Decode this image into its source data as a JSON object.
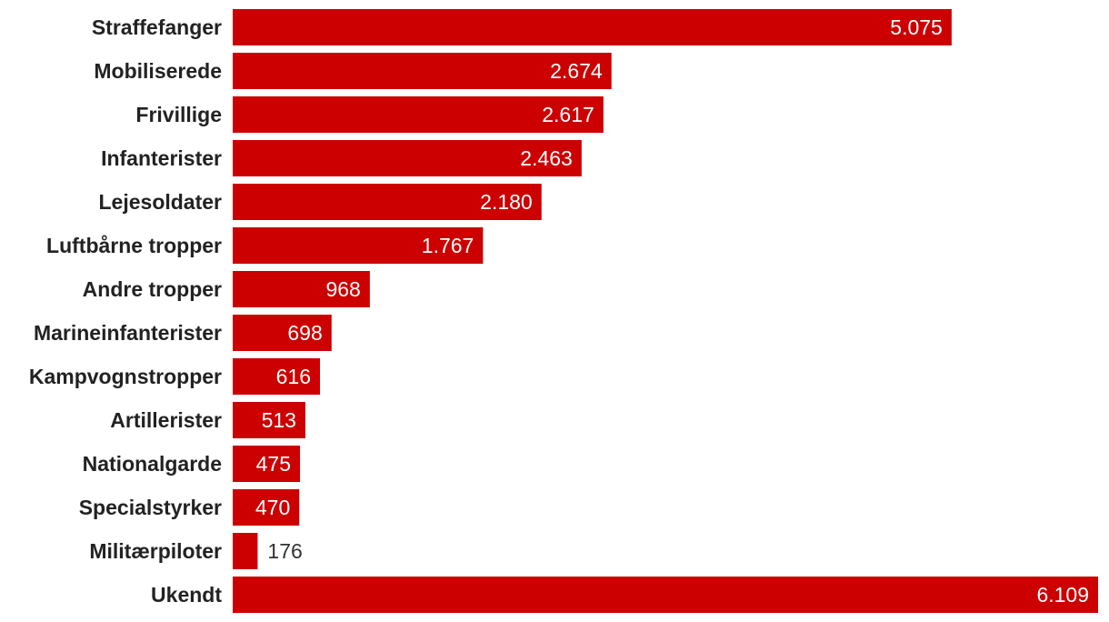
{
  "chart_data": {
    "type": "bar",
    "orientation": "horizontal",
    "title": "",
    "xlabel": "",
    "ylabel": "",
    "categories": [
      "Straffefanger",
      "Mobiliserede",
      "Frivillige",
      "Infanterister",
      "Lejesoldater",
      "Luftbårne tropper",
      "Andre tropper",
      "Marineinfanterister",
      "Kampvognstropper",
      "Artillerister",
      "Nationalgarde",
      "Specialstyrker",
      "Militærpiloter",
      "Ukendt"
    ],
    "values": [
      5075,
      2674,
      2617,
      2463,
      2180,
      1767,
      968,
      698,
      616,
      513,
      475,
      470,
      176,
      6109
    ],
    "value_labels": [
      "5.075",
      "2.674",
      "2.617",
      "2.463",
      "2.180",
      "1.767",
      "968",
      "698",
      "616",
      "513",
      "475",
      "470",
      "176",
      "6.109"
    ],
    "xlim": [
      0,
      6109
    ],
    "grid": false,
    "legend": "none",
    "colors": {
      "bar": "#cc0000",
      "label_inside": "#ffffff",
      "label_outside": "#333333",
      "category_text": "#222222"
    }
  }
}
